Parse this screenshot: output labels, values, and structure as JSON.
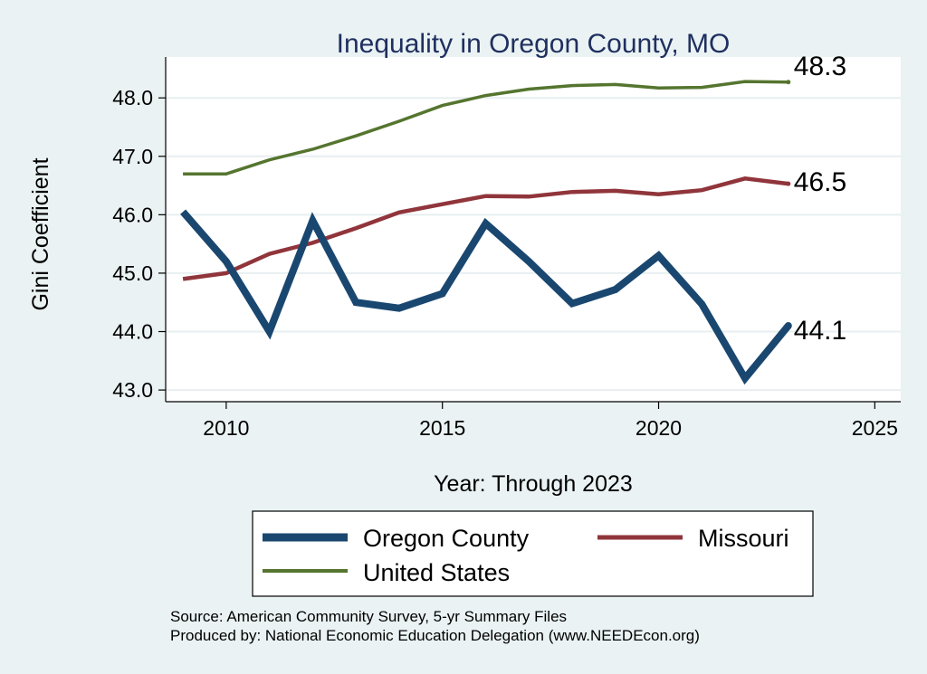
{
  "chart_data": {
    "type": "line",
    "title": "Inequality in Oregon County, MO",
    "xlabel": "Year: Through 2023",
    "ylabel": "Gini Coefficient",
    "xlim": [
      2008.6,
      2025.6
    ],
    "ylim": [
      42.8,
      48.7
    ],
    "xticks": [
      2010,
      2015,
      2020,
      2025
    ],
    "yticks": [
      43.0,
      44.0,
      45.0,
      46.0,
      47.0,
      48.0
    ],
    "ytick_labels": [
      "43.0",
      "44.0",
      "45.0",
      "46.0",
      "47.0",
      "48.0"
    ],
    "grid": true,
    "legend_position": "bottom",
    "x": [
      2009,
      2010,
      2011,
      2012,
      2013,
      2014,
      2015,
      2016,
      2017,
      2018,
      2019,
      2020,
      2021,
      2022,
      2023
    ],
    "series": [
      {
        "name": "Oregon County",
        "color": "#1a476f",
        "values": [
          46.05,
          45.2,
          44.0,
          45.9,
          44.5,
          44.4,
          44.65,
          45.85,
          45.2,
          44.48,
          44.72,
          45.3,
          44.47,
          43.2,
          44.1
        ],
        "end_label": "44.1"
      },
      {
        "name": "Missouri",
        "color": "#90353b",
        "values": [
          44.9,
          45.0,
          45.33,
          45.52,
          45.77,
          46.04,
          46.18,
          46.32,
          46.31,
          46.39,
          46.41,
          46.35,
          46.42,
          46.62,
          46.53
        ],
        "end_label": "46.5"
      },
      {
        "name": "United States",
        "color": "#55752f",
        "values": [
          46.7,
          46.7,
          46.94,
          47.12,
          47.35,
          47.6,
          47.87,
          48.04,
          48.15,
          48.21,
          48.23,
          48.17,
          48.18,
          48.28,
          48.27
        ],
        "end_label": "48.3"
      }
    ],
    "notes": [
      "Source: American Community Survey, 5-yr Summary Files",
      "Produced by: National Economic Education Delegation (www.NEEDEcon.org)"
    ]
  }
}
